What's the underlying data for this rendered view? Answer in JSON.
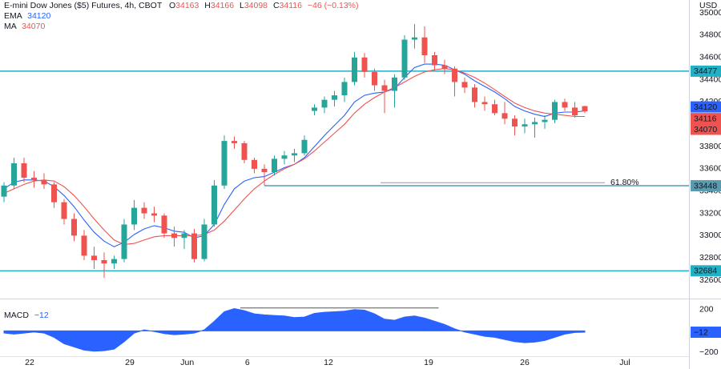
{
  "header": {
    "title": "E-mini Dow Jones ($5) Futures, 4h, CBOT",
    "ohlc_labels": [
      "O",
      "H",
      "L",
      "C"
    ],
    "change": "−46 (−0.13%)"
  },
  "chart_data": [
    {
      "type": "candlestick",
      "currency": "USD",
      "xlim": [
        -0.4,
        68.4
      ],
      "ylim": [
        32442,
        35116
      ],
      "yticks": [
        32600,
        32800,
        33000,
        33200,
        33400,
        33600,
        33800,
        34000,
        34200,
        34400,
        34600,
        34800,
        35000
      ],
      "xticks": [
        {
          "value": 2.56,
          "label": "22"
        },
        {
          "value": 12.56,
          "label": "29"
        },
        {
          "value": 18.3,
          "label": "Jun"
        },
        {
          "value": 24.3,
          "label": "6"
        },
        {
          "value": 32.4,
          "label": "12"
        },
        {
          "value": 42.4,
          "label": "19"
        },
        {
          "value": 52,
          "label": "26"
        },
        {
          "value": 62,
          "label": "Jul"
        }
      ],
      "grid": false,
      "up_color": "#26a69a",
      "down_color": "#ef5350",
      "candles": {
        "open": [
          33350,
          33450,
          33650,
          33520,
          33500,
          33460,
          33300,
          33150,
          33000,
          32820,
          32780,
          32750,
          32790,
          33100,
          33250,
          33200,
          33180,
          33020,
          32980,
          33020,
          32790,
          33100,
          33450,
          33850,
          33830,
          33680,
          33600,
          33570,
          33690,
          33720,
          33740,
          34120,
          34150,
          34220,
          34260,
          34380,
          34600,
          34470,
          34350,
          34300,
          34420,
          34760,
          34780,
          34620,
          34530,
          34500,
          34380,
          34330,
          34200,
          34180,
          34100,
          34050,
          33980,
          34000,
          34020,
          34040,
          34200,
          34150,
          34163
        ],
        "high": [
          33480,
          33700,
          33700,
          33580,
          33560,
          33480,
          33330,
          33200,
          33050,
          32900,
          32850,
          32820,
          33150,
          33320,
          33300,
          33260,
          33200,
          33080,
          33050,
          33060,
          33150,
          33500,
          33900,
          33890,
          33850,
          33700,
          33640,
          33720,
          33760,
          33780,
          33900,
          34180,
          34250,
          34300,
          34420,
          34650,
          34640,
          34500,
          34400,
          34450,
          34800,
          34900,
          34880,
          34650,
          34580,
          34520,
          34420,
          34360,
          34250,
          34220,
          34200,
          34080,
          34050,
          34060,
          34080,
          34220,
          34230,
          34200,
          34166
        ],
        "low": [
          33300,
          33420,
          33480,
          33430,
          33420,
          33250,
          33100,
          32950,
          32780,
          32700,
          32620,
          32700,
          32760,
          33050,
          33150,
          33120,
          32980,
          32900,
          32880,
          32760,
          32770,
          33080,
          33420,
          33780,
          33650,
          33560,
          33450,
          33540,
          33640,
          33660,
          33720,
          34080,
          34100,
          34160,
          34200,
          34350,
          34420,
          34300,
          34100,
          34150,
          34400,
          34680,
          34550,
          34480,
          34450,
          34250,
          34280,
          34150,
          34120,
          34080,
          34000,
          33900,
          33920,
          33880,
          33960,
          34010,
          34120,
          34060,
          34098
        ],
        "close": [
          33450,
          33650,
          33520,
          33500,
          33460,
          33300,
          33150,
          33000,
          32820,
          32780,
          32750,
          32790,
          33100,
          33250,
          33200,
          33180,
          33020,
          32980,
          33020,
          32790,
          33100,
          33450,
          33850,
          33830,
          33680,
          33600,
          33570,
          33690,
          33720,
          33740,
          33860,
          34150,
          34220,
          34260,
          34380,
          34600,
          34470,
          34350,
          34300,
          34420,
          34760,
          34780,
          34620,
          34530,
          34500,
          34380,
          34330,
          34200,
          34180,
          34100,
          34050,
          33980,
          34000,
          34020,
          34040,
          34200,
          34150,
          34080,
          34116
        ]
      },
      "series": [
        {
          "name": "EMA",
          "color": "#2962ff",
          "values": [
            33420,
            33480,
            33500,
            33500,
            33490,
            33440,
            33360,
            33260,
            33140,
            33030,
            32950,
            32900,
            32940,
            33010,
            33060,
            33090,
            33070,
            33040,
            33030,
            32980,
            33000,
            33100,
            33280,
            33420,
            33490,
            33520,
            33530,
            33570,
            33610,
            33640,
            33700,
            33800,
            33900,
            33990,
            34080,
            34200,
            34260,
            34280,
            34290,
            34320,
            34420,
            34510,
            34540,
            34540,
            34530,
            34490,
            34450,
            34390,
            34340,
            34290,
            34230,
            34160,
            34120,
            34090,
            34070,
            34100,
            34110,
            34110,
            34120
          ]
        },
        {
          "name": "MA",
          "color": "#ef5350",
          "values": [
            33380,
            33420,
            33460,
            33490,
            33500,
            33490,
            33440,
            33360,
            33260,
            33150,
            33050,
            32960,
            32920,
            32930,
            32960,
            32990,
            33000,
            33000,
            33000,
            33000,
            33010,
            33050,
            33130,
            33230,
            33330,
            33420,
            33490,
            33550,
            33600,
            33640,
            33690,
            33760,
            33840,
            33920,
            34000,
            34100,
            34180,
            34240,
            34290,
            34330,
            34380,
            34430,
            34470,
            34490,
            34500,
            34490,
            34460,
            34420,
            34370,
            34310,
            34250,
            34190,
            34150,
            34120,
            34100,
            34090,
            34080,
            34070,
            34070
          ]
        }
      ],
      "levels": [
        {
          "value": 34477,
          "color": "#22b0c4",
          "from": -0.4
        },
        {
          "value": 33448,
          "color": "#5a9bb0",
          "from": 26
        },
        {
          "value": 32684,
          "color": "#22b0c4",
          "from": -0.4
        }
      ],
      "fib": {
        "value": 33475,
        "label": "61.80%",
        "x": [
          37.6,
          60
        ],
        "color": "#9598a1",
        "label_color": "#5e4fa2"
      }
    },
    {
      "type": "area",
      "name": "MACD",
      "color": "#2962ff",
      "current_label": "−12",
      "ylim": [
        -237,
        296
      ],
      "yticks": [
        200,
        {
          "value": -200,
          "label": "−200"
        }
      ],
      "values": [
        -20,
        -30,
        -20,
        -10,
        -20,
        -60,
        -120,
        -150,
        -180,
        -190,
        -185,
        -170,
        -100,
        -20,
        10,
        -5,
        -25,
        -35,
        -30,
        -20,
        10,
        90,
        180,
        210,
        190,
        160,
        150,
        145,
        140,
        125,
        130,
        165,
        175,
        180,
        185,
        200,
        195,
        160,
        110,
        100,
        130,
        140,
        120,
        90,
        60,
        20,
        -10,
        -30,
        -50,
        -60,
        -80,
        -100,
        -110,
        -105,
        -90,
        -60,
        -30,
        -15,
        -12
      ],
      "level": {
        "value": 215,
        "x": [
          23.6,
          43.4
        ],
        "color": "#555555"
      }
    }
  ]
}
